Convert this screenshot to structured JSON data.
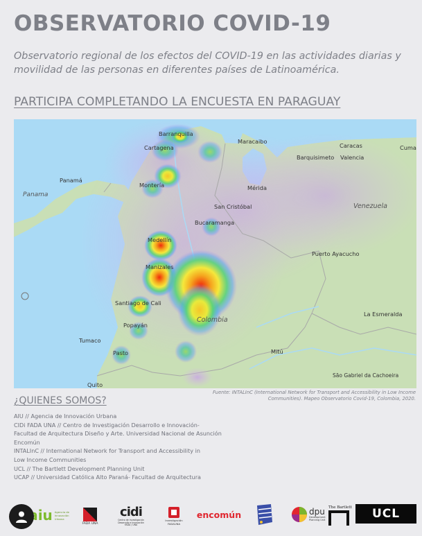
{
  "header": {
    "title": "OBSERVATORIO COVID-19",
    "subtitle": "Observatorio regional de los efectos del COVID-19 en las actividades diarias y movilidad de las personas en diferentes países de Latinoamérica.",
    "cta_link": "PARTICIPA COMPLETANDO LA ENCUESTA EN PARAGUAY"
  },
  "map": {
    "labels": {
      "barranquilla": "Barranquilla",
      "cartagena": "Cartagena",
      "maracaibo": "Maracaibo",
      "caracas": "Caracas",
      "cumana": "Cuma",
      "barquisimeto": "Barquisimeto",
      "valencia": "Valencia",
      "panama_country": "Panama",
      "panama_city": "Panamá",
      "monteria": "Montería",
      "merida": "Mérida",
      "san_cristobal": "San Cristóbal",
      "venezuela": "Venezuela",
      "bucaramanga": "Bucaramanga",
      "puerto_ayacucho": "Puerto Ayacucho",
      "medellin": "Medellín",
      "manizales": "Manizales",
      "santiago_de_cali": "Santiago de Cali",
      "colombia": "Colombia",
      "popayan": "Popayán",
      "la_esmeralda": "La Esmeralda",
      "tumaco": "Tumaco",
      "pasto": "Pasto",
      "mitu": "Mitú",
      "quito": "Quito",
      "sao_gabriel": "São Gabriel da Cachoeira"
    },
    "source_note": "Fuente: INTALInC (International Network for Transport and Accessibility in Low Income Communities). Mapeo Observatorio Covid-19, Colombia, 2020."
  },
  "about": {
    "heading": "¿QUIENES SOMOS?",
    "lines": [
      "AIU // Agencia de Innovación Urbana",
      "CIDi FADA UNA // Centro de Investigación Desarrollo e Innovación-",
      "Facultad de Arquitectura Diseño y Arte. Universidad Nacional de Asunción",
      "Encomún",
      "INTALInC // International Network for Transport and Accessibility in",
      "Low Income Communities",
      "UCL // The Bartlett Development Planning Unit",
      "UCAP // Universidad Católica Alto Paraná- Facultad de Arquitectura"
    ]
  },
  "logos": {
    "aiu": "aiu",
    "aiu_sub": "Agencia de Innovación Urbana",
    "fada": "FADA UNA",
    "cidi": "cidi",
    "cidi_sub": "Centro de Investigación Desarrollo e Innovación FADA / UNA",
    "investigacion": "Investigación FADAUNA",
    "encomun": "encomún",
    "dpu": "dpu",
    "dpu_sub": "Development Planning Unit",
    "bartlett": "The Bartlett",
    "ucl": "UCL"
  },
  "colors": {
    "page_bg": "#ebebee",
    "text_gray": "#7e8088",
    "sea": "#aadaf5",
    "land": "#c9dfb6",
    "heat_red": "#f02a0a",
    "heat_yellow": "#f5e83c"
  }
}
